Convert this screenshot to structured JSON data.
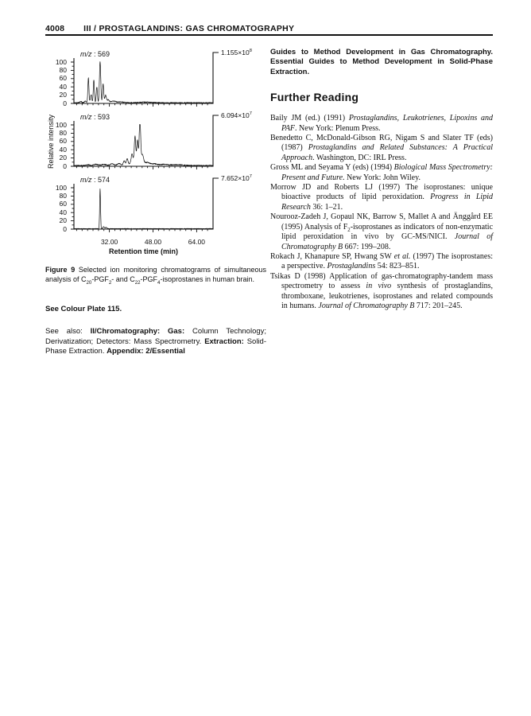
{
  "header": {
    "page_number": "4008",
    "running_title": "III / PROSTAGLANDINS: GAS CHROMATOGRAPHY"
  },
  "chart_data": {
    "type": "line",
    "description": "Selected ion monitoring chromatograms, three stacked panels",
    "xlabel": "Retention time (min)",
    "ylabel": "Relative intensity",
    "xlim": [
      19,
      70
    ],
    "ylim": [
      0,
      100
    ],
    "xticks": [
      32,
      48,
      64
    ],
    "xtick_labels": [
      "32.00",
      "48.00",
      "64.00"
    ],
    "xtick_minor_step": 2,
    "yticks": [
      0,
      20,
      40,
      60,
      80,
      100
    ],
    "grid": false,
    "panels": [
      {
        "mz": "569",
        "mz_label_parts": [
          {
            "t": "m/z",
            "i": 1
          },
          {
            "t": " : 569"
          }
        ],
        "max_intensity": "1.155e8",
        "max_label_parts": [
          {
            "t": "1.155×10"
          },
          {
            "t": "8",
            "sup": 1
          }
        ],
        "peaks": [
          [
            21.5,
            3,
            0.4
          ],
          [
            23.2,
            4,
            0.35
          ],
          [
            24.3,
            60,
            0.2
          ],
          [
            25.3,
            20,
            0.25
          ],
          [
            26.3,
            56,
            0.2
          ],
          [
            27.4,
            38,
            0.22
          ],
          [
            28.6,
            100,
            0.24
          ],
          [
            29.7,
            45,
            0.22
          ],
          [
            30.6,
            18,
            0.3
          ],
          [
            31.6,
            7,
            0.4
          ],
          [
            33.5,
            4,
            0.8
          ],
          [
            36,
            2,
            1.2
          ],
          [
            45,
            1.5,
            3
          ]
        ],
        "noise": 1.4
      },
      {
        "mz": "593",
        "mz_label_parts": [
          {
            "t": "m/z",
            "i": 1
          },
          {
            "t": " : 593"
          }
        ],
        "max_intensity": "6.094e7",
        "max_label_parts": [
          {
            "t": "6.094×10"
          },
          {
            "t": "7",
            "sup": 1
          }
        ],
        "peaks": [
          [
            24,
            2,
            0.6
          ],
          [
            27,
            3,
            0.8
          ],
          [
            30,
            3,
            0.8
          ],
          [
            33,
            4,
            0.7
          ],
          [
            35.5,
            5,
            0.6
          ],
          [
            37.4,
            10,
            0.35
          ],
          [
            38.5,
            14,
            0.3
          ],
          [
            40.3,
            20,
            0.3
          ],
          [
            41.4,
            58,
            0.25
          ],
          [
            42.3,
            48,
            0.25
          ],
          [
            43.2,
            100,
            0.26
          ],
          [
            44.1,
            18,
            0.4
          ],
          [
            42,
            14,
            1.8
          ],
          [
            46,
            6,
            1
          ],
          [
            48.5,
            4,
            1
          ],
          [
            52,
            3,
            1.5
          ],
          [
            57,
            2,
            2
          ]
        ],
        "noise": 1.6
      },
      {
        "mz": "574",
        "mz_label_parts": [
          {
            "t": "m/z",
            "i": 1
          },
          {
            "t": " : 574"
          }
        ],
        "max_intensity": "7.652e7",
        "max_label_parts": [
          {
            "t": "7.652×10"
          },
          {
            "t": "7",
            "sup": 1
          }
        ],
        "peaks": [
          [
            28.6,
            97,
            0.16
          ],
          [
            29.9,
            5,
            0.25
          ],
          [
            30.8,
            3,
            0.3
          ]
        ],
        "noise": 0.8
      }
    ]
  },
  "figure": {
    "caption_parts": [
      {
        "t": "Figure 9",
        "b": 1
      },
      {
        "t": " Selected ion monitoring chromatograms of simultaneous analysis of C"
      },
      {
        "t": "20",
        "sub": 1
      },
      {
        "t": "-PGF"
      },
      {
        "t": "2",
        "sub": 1
      },
      {
        "t": "- and C"
      },
      {
        "t": "22",
        "sub": 1
      },
      {
        "t": "-PGF"
      },
      {
        "t": "4",
        "sub": 1
      },
      {
        "t": "-isoprostanes in human brain."
      }
    ]
  },
  "left_column": {
    "see_colour_plate": "See Colour Plate 115.",
    "see_also_parts": [
      {
        "t": "See also: "
      },
      {
        "t": "II/Chromatography: Gas: ",
        "b": 1
      },
      {
        "t": "Column Technology; Derivatization; Detectors: Mass Spectrometry. "
      },
      {
        "t": "Extraction: ",
        "b": 1
      },
      {
        "t": "Solid-Phase Extraction. "
      },
      {
        "t": "Appendix: 2/Essential",
        "b": 1
      }
    ]
  },
  "right_column": {
    "continuation_parts": [
      {
        "t": "Guides to Method Development in Gas Chromatography. Essential Guides to Method Development in Solid-Phase Extraction.",
        "b": 1
      }
    ],
    "further_reading_title": "Further Reading",
    "references": [
      {
        "parts": [
          {
            "t": "Baily JM (ed.) (1991) "
          },
          {
            "t": "Prostaglandins, Leukotrienes, Lipoxins and PAF",
            "i": 1
          },
          {
            "t": ". New York: Plenum Press."
          }
        ]
      },
      {
        "parts": [
          {
            "t": "Benedetto C, McDonald-Gibson RG, Nigam S and Slater TF (eds) (1987) "
          },
          {
            "t": "Prostaglandins and Related Substances: A Practical Approach",
            "i": 1
          },
          {
            "t": ". Washington, DC: IRL Press."
          }
        ]
      },
      {
        "parts": [
          {
            "t": "Gross ML and Seyama Y (eds) (1994) "
          },
          {
            "t": "Biological Mass Spectrometry: Present and Future",
            "i": 1
          },
          {
            "t": ". New York: John Wiley."
          }
        ]
      },
      {
        "parts": [
          {
            "t": "Morrow JD and Roberts LJ (1997) The isoprostanes: unique bioactive products of lipid peroxidation. "
          },
          {
            "t": "Progress in Lipid Research",
            "i": 1
          },
          {
            "t": " 36: 1–21."
          }
        ]
      },
      {
        "parts": [
          {
            "t": "Nourooz-Zadeh J, Gopaul NK, Barrow S, Mallet A and Änggård EE (1995) Analysis of F"
          },
          {
            "t": "2",
            "sub": 1
          },
          {
            "t": "-isoprostanes as indicators of non-enzymatic lipid peroxidation in vivo by GC-MS/NICI. "
          },
          {
            "t": "Journal of Chromatography B",
            "i": 1
          },
          {
            "t": " 667: 199–208."
          }
        ]
      },
      {
        "parts": [
          {
            "t": "Rokach J, Khanapure SP, Hwang SW "
          },
          {
            "t": "et al.",
            "i": 1
          },
          {
            "t": " (1997) The isoprostanes: a perspective. "
          },
          {
            "t": "Prostaglandins",
            "i": 1
          },
          {
            "t": " 54: 823–851."
          }
        ]
      },
      {
        "parts": [
          {
            "t": "Tsikas D (1998) Application of gas-chromatography-tandem mass spectrometry to assess "
          },
          {
            "t": "in vivo",
            "i": 1
          },
          {
            "t": " synthesis of prostaglandins, thromboxane, leukotrienes, isoprostanes and related compounds in humans. "
          },
          {
            "t": "Journal of Chromatography B",
            "i": 1
          },
          {
            "t": " 717: 201–245."
          }
        ]
      }
    ]
  }
}
